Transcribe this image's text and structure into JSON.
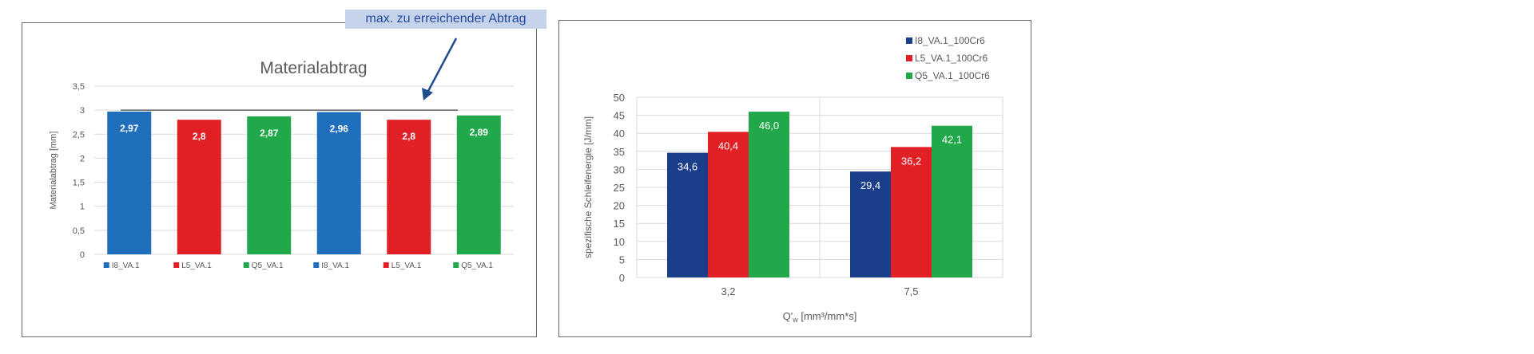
{
  "annotation": {
    "label": "max. zu erreichender Abtrag",
    "arrow_color": "#1f4e8c"
  },
  "chart_data": [
    {
      "type": "bar",
      "title": "Materialabtrag",
      "xlabel": "",
      "ylabel": "Materialabtrag [mm]",
      "ylim": [
        0,
        3.5
      ],
      "yticks": [
        "0",
        "0,5",
        "1",
        "1,5",
        "2",
        "2,5",
        "3",
        "3,5"
      ],
      "reference_line": 3,
      "grid": true,
      "legend_position": "bottom",
      "categories": [
        "I8_VA.1",
        "L5_VA.1",
        "Q5_VA.1",
        "I8_VA.1",
        "L5_VA.1",
        "Q5_VA.1"
      ],
      "values": [
        2.97,
        2.8,
        2.87,
        2.96,
        2.8,
        2.89
      ],
      "labels": [
        "2,97",
        "2,8",
        "2,87",
        "2,96",
        "2,8",
        "2,89"
      ],
      "colors": [
        "#1f6fbd",
        "#e02025",
        "#21a84a",
        "#1f6fbd",
        "#e02025",
        "#21a84a"
      ]
    },
    {
      "type": "bar",
      "title": "",
      "xlabel": "Q'w [mm³/mm*s]",
      "ylabel": "spezifische Schleifenergie [J/mm]",
      "ylim": [
        0,
        50
      ],
      "yticks": [
        "0",
        "5",
        "10",
        "15",
        "20",
        "25",
        "30",
        "35",
        "40",
        "45",
        "50"
      ],
      "grid": true,
      "legend_position": "top-right",
      "categories": [
        "3,2",
        "7,5"
      ],
      "series": [
        {
          "name": "I8_VA.1_100Cr6",
          "values": [
            34.6,
            29.4
          ],
          "labels": [
            "34,6",
            "29,4"
          ],
          "color": "#1b3e8b"
        },
        {
          "name": "L5_VA.1_100Cr6",
          "values": [
            40.4,
            36.2
          ],
          "labels": [
            "40,4",
            "36,2"
          ],
          "color": "#e02025"
        },
        {
          "name": "Q5_VA.1_100Cr6",
          "values": [
            46.0,
            42.1
          ],
          "labels": [
            "46,0",
            "42,1"
          ],
          "color": "#21a84a"
        }
      ]
    }
  ]
}
